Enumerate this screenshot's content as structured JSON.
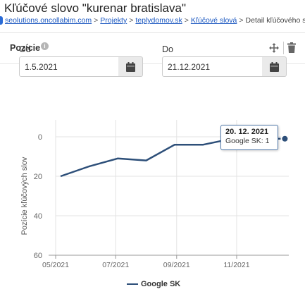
{
  "page": {
    "title": "Kľúčové slovo \"kurenar bratislava\""
  },
  "breadcrumb": {
    "items": [
      {
        "label": "seolutions.oncollabim.com",
        "link": true
      },
      {
        "label": "Projekty",
        "link": true
      },
      {
        "label": "teplydomov.sk",
        "link": true
      },
      {
        "label": "Kľúčové slová",
        "link": true
      },
      {
        "label": "Detail kľúčového slova",
        "link": false
      }
    ],
    "separator": ">"
  },
  "panel": {
    "title": "Pozície",
    "info_icon": "info-icon",
    "move_icon": "move-icon",
    "delete_icon": "trash-icon"
  },
  "date_range": {
    "from_label": "Od",
    "from_value": "1.5.2021",
    "to_label": "Do",
    "to_value": "21.12.2021",
    "calendar_icon": "calendar-icon"
  },
  "tooltip": {
    "date": "20. 12. 2021",
    "text": "Google SK: 1"
  },
  "chart_data": {
    "type": "line",
    "title": "",
    "xlabel": "",
    "ylabel": "Pozície kľúčových slov",
    "y_inverted": true,
    "ylim": [
      60,
      0
    ],
    "y_ticks": [
      0,
      20,
      40,
      60
    ],
    "xlim": [
      "2021-05-01",
      "2021-12-24"
    ],
    "x_ticks": [
      {
        "date": "2021-05-01",
        "label": "05/2021"
      },
      {
        "date": "2021-07-01",
        "label": "07/2021"
      },
      {
        "date": "2021-09-01",
        "label": "09/2021"
      },
      {
        "date": "2021-11-01",
        "label": "11/2021"
      }
    ],
    "grid": true,
    "legend_position": "bottom",
    "series": [
      {
        "name": "Google SK",
        "color": "#2d4f79",
        "points": [
          {
            "x": "2021-05-06",
            "y": 20
          },
          {
            "x": "2021-06-04",
            "y": 15
          },
          {
            "x": "2021-07-03",
            "y": 11
          },
          {
            "x": "2021-08-01",
            "y": 12
          },
          {
            "x": "2021-08-30",
            "y": 4
          },
          {
            "x": "2021-09-28",
            "y": 4
          },
          {
            "x": "2021-10-27",
            "y": 1
          },
          {
            "x": "2021-11-25",
            "y": 1
          },
          {
            "x": "2021-12-20",
            "y": 1
          }
        ]
      }
    ]
  }
}
